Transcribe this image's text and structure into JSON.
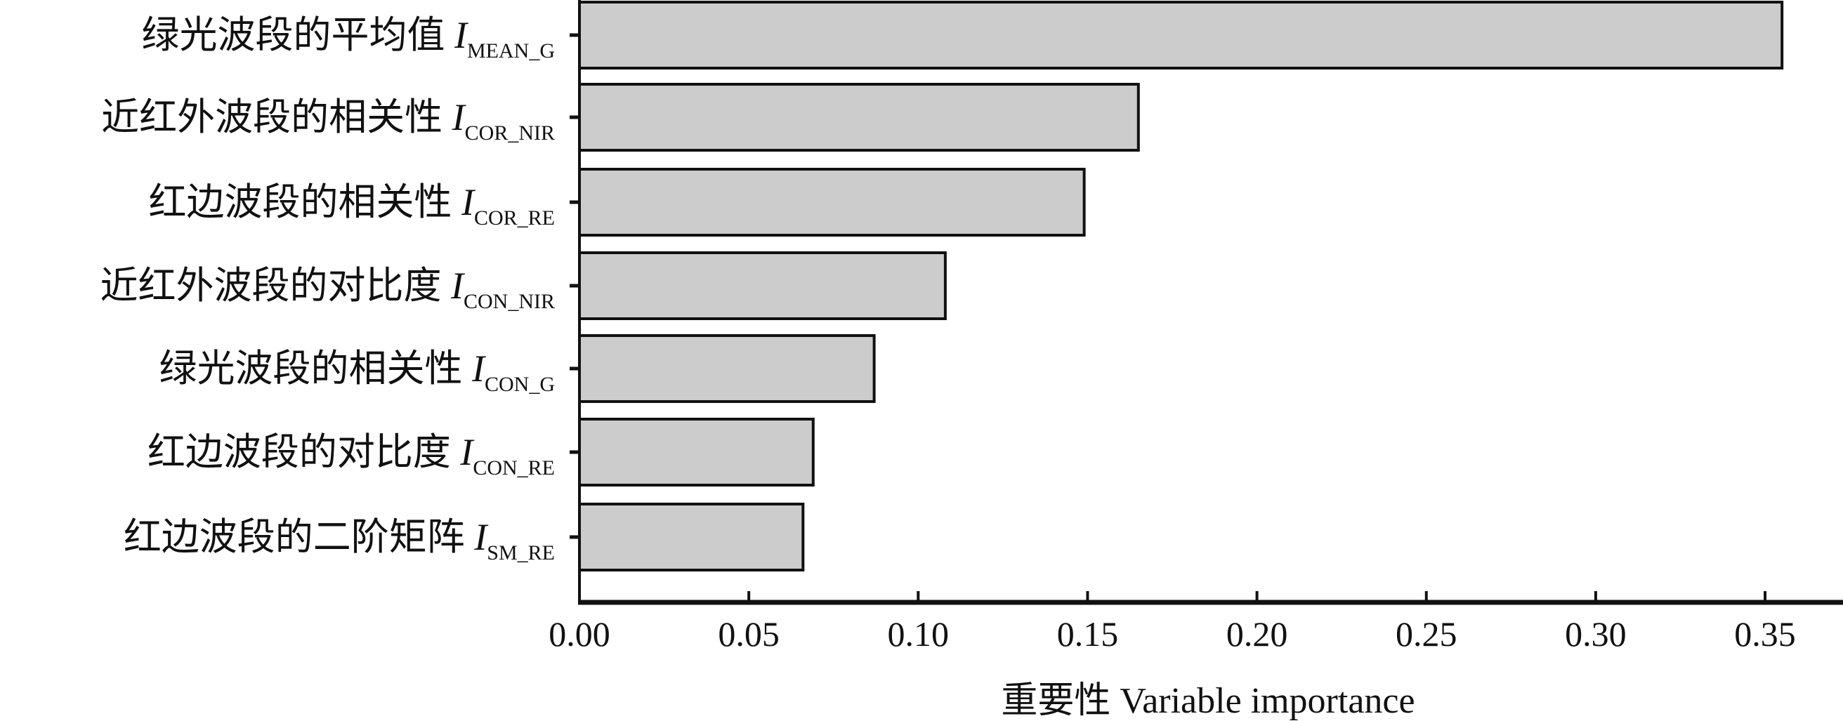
{
  "chart_data": {
    "type": "bar",
    "orientation": "horizontal",
    "categories": [
      {
        "label": "绿光波段的平均值",
        "symbol": "I",
        "subscript": "MEAN_G"
      },
      {
        "label": "近红外波段的相关性",
        "symbol": "I",
        "subscript": "COR_NIR"
      },
      {
        "label": "红边波段的相关性",
        "symbol": "I",
        "subscript": "COR_RE"
      },
      {
        "label": "近红外波段的对比度",
        "symbol": "I",
        "subscript": "CON_NIR"
      },
      {
        "label": "绿光波段的相关性",
        "symbol": "I",
        "subscript": "CON_G"
      },
      {
        "label": "红边波段的对比度",
        "symbol": "I",
        "subscript": "CON_RE"
      },
      {
        "label": "红边波段的二阶矩阵",
        "symbol": "I",
        "subscript": "SM_RE"
      }
    ],
    "values": [
      0.355,
      0.165,
      0.149,
      0.108,
      0.087,
      0.069,
      0.066
    ],
    "xlabel": "重要性 Variable importance",
    "ylabel": "",
    "xlim": [
      0,
      0.37
    ],
    "xticks": [
      "0.00",
      "0.05",
      "0.10",
      "0.15",
      "0.20",
      "0.25",
      "0.30",
      "0.35"
    ],
    "grid": false,
    "bar_color": "#cccccc",
    "edge_color": "#111111"
  }
}
